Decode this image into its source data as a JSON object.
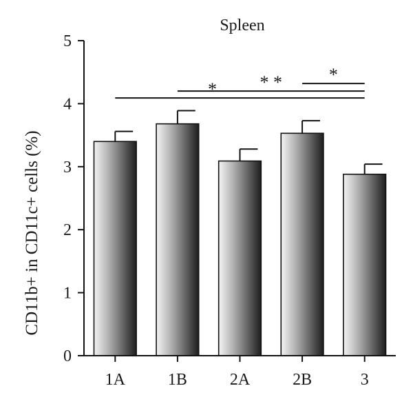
{
  "chart_data": {
    "type": "bar",
    "title": "Spleen",
    "xlabel": "",
    "ylabel": "CD11b+ in CD11c+ cells (%)",
    "categories": [
      "1A",
      "1B",
      "2A",
      "2B",
      "3"
    ],
    "values": [
      3.4,
      3.68,
      3.09,
      3.53,
      2.88
    ],
    "errors": [
      0.16,
      0.21,
      0.19,
      0.2,
      0.16
    ],
    "ylim": [
      0,
      5
    ],
    "yticks": [
      "0",
      "1",
      "2",
      "3",
      "4",
      "5"
    ],
    "grid": false,
    "significance": [
      {
        "from": "1A",
        "to": "3",
        "level": 4.09,
        "label": "*"
      },
      {
        "from": "1B",
        "to": "3",
        "level": 4.2,
        "label": "* *"
      },
      {
        "from": "2B",
        "to": "3",
        "level": 4.32,
        "label": "*"
      }
    ]
  }
}
